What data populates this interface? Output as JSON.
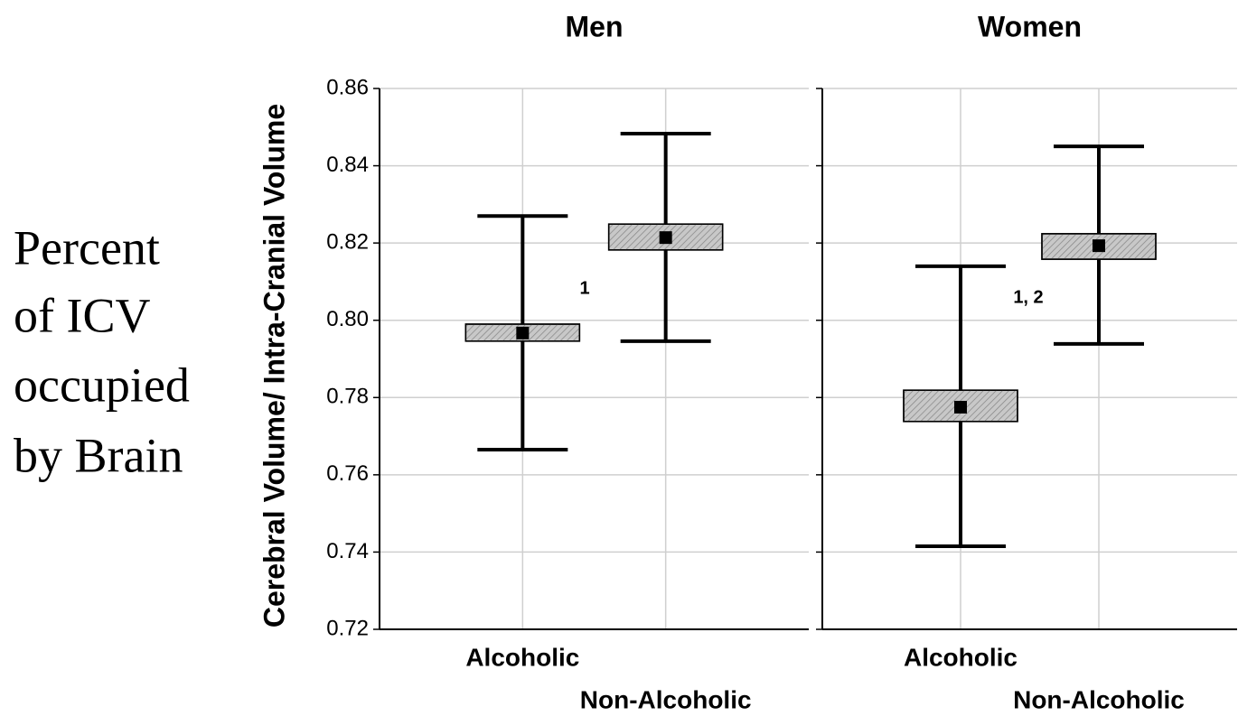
{
  "side_text": [
    "Percent",
    "of ICV",
    "occupied",
    "by Brain"
  ],
  "chart_data": [
    {
      "type": "box",
      "title": "Men",
      "ylabel": "Cerebral Volume/ Intra-Cranial Volume",
      "categories": [
        "Alcoholic",
        "Non-Alcoholic"
      ],
      "values": [
        0.7967,
        0.8214
      ],
      "box_high": [
        0.799,
        0.8249
      ],
      "box_low": [
        0.7946,
        0.8182
      ],
      "whisker_high": [
        0.827,
        0.8483
      ],
      "whisker_low": [
        0.7665,
        0.7946
      ],
      "annotations": [
        "1"
      ],
      "ylim": [
        0.72,
        0.86
      ],
      "yticks": [
        {
          "value": 0.72,
          "label": "0.72"
        },
        {
          "value": 0.74,
          "label": "0.74"
        },
        {
          "value": 0.76,
          "label": "0.76"
        },
        {
          "value": 0.78,
          "label": "0.78"
        },
        {
          "value": 0.8,
          "label": "0.80"
        },
        {
          "value": 0.82,
          "label": "0.82"
        },
        {
          "value": 0.84,
          "label": "0.84"
        },
        {
          "value": 0.86,
          "label": "0.86"
        }
      ],
      "ytick_labels": true,
      "grid": true,
      "box_color": "#c8c8c8",
      "mean_color": "#000000"
    },
    {
      "type": "box",
      "title": "Women",
      "categories": [
        "Alcoholic",
        "Non-Alcoholic"
      ],
      "values": [
        0.7775,
        0.8193
      ],
      "box_high": [
        0.7819,
        0.8224
      ],
      "box_low": [
        0.7738,
        0.8158
      ],
      "whisker_high": [
        0.814,
        0.845
      ],
      "whisker_low": [
        0.7415,
        0.7939
      ],
      "annotations": [
        "1, 2"
      ],
      "ylim": [
        0.72,
        0.86
      ],
      "yticks": [
        0.72,
        0.74,
        0.76,
        0.78,
        0.8,
        0.82,
        0.84,
        0.86
      ],
      "ytick_labels": false,
      "grid": true,
      "box_color": "#c8c8c8",
      "mean_color": "#000000"
    }
  ]
}
